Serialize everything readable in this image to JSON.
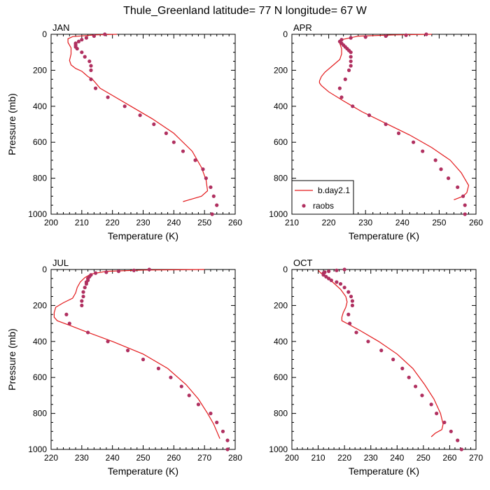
{
  "figure": {
    "title": "Thule_Greenland  latitude= 77 N longitude= 67 W"
  },
  "legend": {
    "entries": [
      "b.day2.1",
      "raobs"
    ],
    "line_color": "#e31a1c",
    "marker_color": "#b03060"
  },
  "chart_data": [
    {
      "type": "line",
      "panel": "JAN",
      "xlabel": "Temperature (K)",
      "ylabel": "Pressure (mb)",
      "xlim": [
        200,
        260
      ],
      "ylim": [
        1000,
        0
      ],
      "xticks": [
        200,
        210,
        220,
        230,
        240,
        250,
        260
      ],
      "yticks": [
        0,
        200,
        400,
        600,
        800,
        1000
      ],
      "series": [
        {
          "name": "b.day2.1",
          "kind": "line",
          "points": [
            [
              221.5,
              0
            ],
            [
              214.5,
              3
            ],
            [
              207,
              13
            ],
            [
              205.5,
              25
            ],
            [
              205.5,
              45
            ],
            [
              206.5,
              75
            ],
            [
              206.5,
              110
            ],
            [
              206,
              145
            ],
            [
              206.5,
              170
            ],
            [
              208,
              190
            ],
            [
              210,
              205
            ],
            [
              211,
              220
            ],
            [
              212,
              235
            ],
            [
              213.5,
              250
            ],
            [
              216,
              300
            ],
            [
              220,
              340
            ],
            [
              226,
              400
            ],
            [
              233,
              470
            ],
            [
              240,
              550
            ],
            [
              246,
              650
            ],
            [
              249,
              740
            ],
            [
              250.5,
              810
            ],
            [
              251,
              870
            ],
            [
              249,
              900
            ],
            [
              245,
              920
            ],
            [
              243,
              930
            ]
          ]
        },
        {
          "name": "raobs",
          "kind": "scatter",
          "points": [
            [
              217.5,
              0
            ],
            [
              214,
              10
            ],
            [
              211.5,
              20
            ],
            [
              210,
              30
            ],
            [
              209,
              40
            ],
            [
              208,
              50
            ],
            [
              208,
              60
            ],
            [
              208,
              70
            ],
            [
              208.5,
              80
            ],
            [
              210,
              100
            ],
            [
              211,
              125
            ],
            [
              212.5,
              150
            ],
            [
              213,
              175
            ],
            [
              213,
              200
            ],
            [
              213,
              250
            ],
            [
              214.5,
              300
            ],
            [
              218.5,
              350
            ],
            [
              224,
              400
            ],
            [
              229,
              450
            ],
            [
              233.5,
              500
            ],
            [
              237.5,
              550
            ],
            [
              240,
              600
            ],
            [
              243,
              650
            ],
            [
              247,
              700
            ],
            [
              249.5,
              750
            ],
            [
              250.5,
              800
            ],
            [
              252,
              850
            ],
            [
              253,
              900
            ],
            [
              254,
              950
            ],
            [
              252.5,
              1000
            ]
          ]
        }
      ]
    },
    {
      "type": "line",
      "panel": "APR",
      "xlabel": "Temperature (K)",
      "ylabel": "",
      "xlim": [
        210,
        260
      ],
      "ylim": [
        1000,
        0
      ],
      "xticks": [
        210,
        220,
        230,
        240,
        250,
        260
      ],
      "yticks": [
        0,
        200,
        400,
        600,
        800,
        1000
      ],
      "series": [
        {
          "name": "b.day2.1",
          "kind": "line",
          "points": [
            [
              248,
              0
            ],
            [
              238,
              3
            ],
            [
              228,
              10
            ],
            [
              223.5,
              30
            ],
            [
              223,
              50
            ],
            [
              223.5,
              80
            ],
            [
              223.5,
              110
            ],
            [
              223,
              140
            ],
            [
              221,
              175
            ],
            [
              219,
              210
            ],
            [
              218,
              235
            ],
            [
              217.5,
              260
            ],
            [
              217.5,
              270
            ],
            [
              218,
              285
            ],
            [
              220,
              320
            ],
            [
              224,
              370
            ],
            [
              229,
              430
            ],
            [
              235,
              490
            ],
            [
              242,
              560
            ],
            [
              248,
              630
            ],
            [
              253,
              700
            ],
            [
              256,
              770
            ],
            [
              258,
              840
            ],
            [
              257.5,
              880
            ],
            [
              256.5,
              900
            ],
            [
              254,
              920
            ]
          ]
        },
        {
          "name": "raobs",
          "kind": "scatter",
          "points": [
            [
              246.5,
              0
            ],
            [
              241,
              5
            ],
            [
              235.5,
              10
            ],
            [
              230,
              15
            ],
            [
              226,
              20
            ],
            [
              223.5,
              30
            ],
            [
              223,
              40
            ],
            [
              223.5,
              50
            ],
            [
              224,
              60
            ],
            [
              224.5,
              70
            ],
            [
              225,
              80
            ],
            [
              225.5,
              90
            ],
            [
              226,
              100
            ],
            [
              226,
              125
            ],
            [
              226,
              150
            ],
            [
              226,
              175
            ],
            [
              225.5,
              200
            ],
            [
              224.5,
              250
            ],
            [
              223,
              300
            ],
            [
              223.5,
              350
            ],
            [
              226.5,
              400
            ],
            [
              231,
              450
            ],
            [
              235.5,
              500
            ],
            [
              239,
              550
            ],
            [
              243,
              600
            ],
            [
              245.5,
              650
            ],
            [
              249,
              700
            ],
            [
              250.5,
              750
            ],
            [
              252.5,
              800
            ],
            [
              255,
              850
            ],
            [
              256.5,
              900
            ],
            [
              257,
              950
            ],
            [
              257,
              1000
            ]
          ]
        }
      ]
    },
    {
      "type": "line",
      "panel": "JUL",
      "xlabel": "Temperature (K)",
      "ylabel": "Pressure (mb)",
      "xlim": [
        220,
        280
      ],
      "ylim": [
        1000,
        0
      ],
      "xticks": [
        220,
        230,
        240,
        250,
        260,
        270,
        280
      ],
      "yticks": [
        0,
        200,
        400,
        600,
        800,
        1000
      ],
      "series": [
        {
          "name": "b.day2.1",
          "kind": "line",
          "points": [
            [
              270,
              0
            ],
            [
              250,
              3
            ],
            [
              238,
              10
            ],
            [
              233,
              25
            ],
            [
              231,
              45
            ],
            [
              229.5,
              70
            ],
            [
              228.5,
              100
            ],
            [
              228,
              130
            ],
            [
              227,
              160
            ],
            [
              224,
              185
            ],
            [
              221.5,
              210
            ],
            [
              221,
              240
            ],
            [
              221,
              265
            ],
            [
              222,
              285
            ],
            [
              226,
              310
            ],
            [
              232,
              350
            ],
            [
              240,
              400
            ],
            [
              250,
              470
            ],
            [
              258,
              550
            ],
            [
              264,
              640
            ],
            [
              268,
              720
            ],
            [
              271,
              800
            ],
            [
              273,
              860
            ],
            [
              274,
              900
            ],
            [
              275,
              940
            ]
          ]
        },
        {
          "name": "raobs",
          "kind": "scatter",
          "points": [
            [
              252,
              0
            ],
            [
              247,
              5
            ],
            [
              242,
              10
            ],
            [
              238,
              15
            ],
            [
              234.5,
              20
            ],
            [
              233,
              30
            ],
            [
              232.5,
              40
            ],
            [
              232,
              50
            ],
            [
              232,
              60
            ],
            [
              231.5,
              70
            ],
            [
              231.5,
              80
            ],
            [
              231,
              100
            ],
            [
              230.5,
              125
            ],
            [
              230.5,
              150
            ],
            [
              230,
              175
            ],
            [
              230,
              200
            ],
            [
              225,
              250
            ],
            [
              226,
              300
            ],
            [
              232,
              350
            ],
            [
              238.5,
              400
            ],
            [
              245,
              450
            ],
            [
              250,
              500
            ],
            [
              255,
              550
            ],
            [
              259,
              600
            ],
            [
              262.5,
              650
            ],
            [
              265,
              700
            ],
            [
              268,
              750
            ],
            [
              272,
              800
            ],
            [
              274,
              850
            ],
            [
              276,
              900
            ],
            [
              277.5,
              950
            ],
            [
              277.5,
              1000
            ]
          ]
        }
      ]
    },
    {
      "type": "line",
      "panel": "OCT",
      "xlabel": "Temperature (K)",
      "ylabel": "",
      "xlim": [
        200,
        270
      ],
      "ylim": [
        1000,
        0
      ],
      "xticks": [
        200,
        210,
        220,
        230,
        240,
        250,
        260,
        270
      ],
      "yticks": [
        0,
        200,
        400,
        600,
        800,
        1000
      ],
      "series": [
        {
          "name": "b.day2.1",
          "kind": "line",
          "points": [
            [
              210,
              5
            ],
            [
              211,
              20
            ],
            [
              213,
              40
            ],
            [
              215.5,
              70
            ],
            [
              218.5,
              110
            ],
            [
              220.5,
              150
            ],
            [
              221,
              180
            ],
            [
              220.5,
              210
            ],
            [
              219.5,
              240
            ],
            [
              219,
              265
            ],
            [
              219,
              285
            ],
            [
              221,
              300
            ],
            [
              226,
              340
            ],
            [
              233,
              400
            ],
            [
              240,
              470
            ],
            [
              246,
              550
            ],
            [
              250.5,
              640
            ],
            [
              254,
              720
            ],
            [
              256.5,
              800
            ],
            [
              257.5,
              860
            ],
            [
              257,
              890
            ],
            [
              254.5,
              910
            ],
            [
              253,
              930
            ]
          ]
        },
        {
          "name": "raobs",
          "kind": "scatter",
          "points": [
            [
              220,
              0
            ],
            [
              217,
              5
            ],
            [
              214,
              10
            ],
            [
              212.5,
              15
            ],
            [
              212,
              20
            ],
            [
              212,
              30
            ],
            [
              213,
              40
            ],
            [
              214,
              50
            ],
            [
              215,
              60
            ],
            [
              217,
              70
            ],
            [
              218.5,
              80
            ],
            [
              220,
              100
            ],
            [
              221.5,
              125
            ],
            [
              222.5,
              150
            ],
            [
              223,
              175
            ],
            [
              223,
              200
            ],
            [
              221.5,
              250
            ],
            [
              222,
              300
            ],
            [
              224.5,
              350
            ],
            [
              229,
              400
            ],
            [
              234,
              450
            ],
            [
              238.5,
              500
            ],
            [
              242,
              550
            ],
            [
              244.5,
              600
            ],
            [
              247,
              650
            ],
            [
              249.5,
              700
            ],
            [
              253,
              750
            ],
            [
              255,
              800
            ],
            [
              258,
              850
            ],
            [
              260.5,
              900
            ],
            [
              263,
              950
            ],
            [
              264.5,
              1000
            ]
          ]
        }
      ]
    }
  ]
}
